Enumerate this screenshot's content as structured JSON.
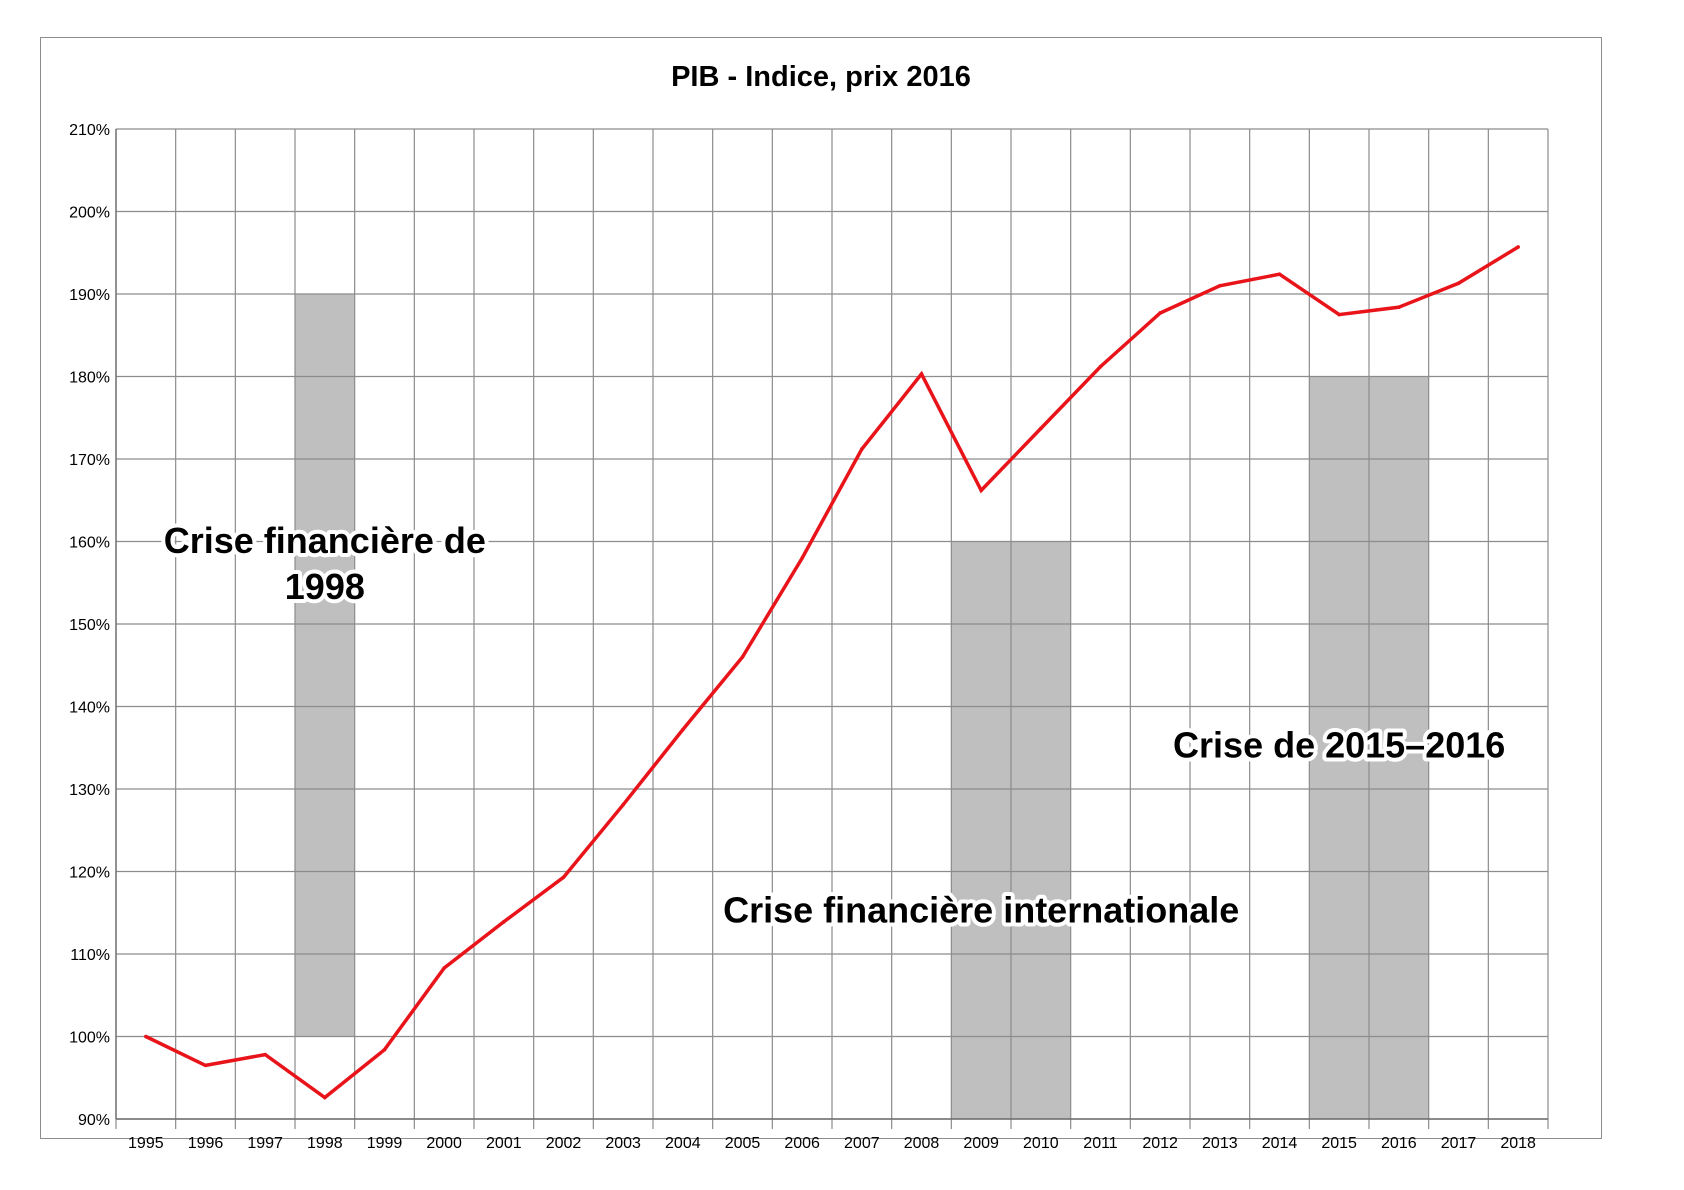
{
  "chart_data": {
    "type": "line",
    "title": "PIB - Indice, prix 2016",
    "xlabel": "",
    "ylabel": "",
    "x": [
      "1995",
      "1996",
      "1997",
      "1998",
      "1999",
      "2000",
      "2001",
      "2002",
      "2003",
      "2004",
      "2005",
      "2006",
      "2007",
      "2008",
      "2009",
      "2010",
      "2011",
      "2012",
      "2013",
      "2014",
      "2015",
      "2016",
      "2017",
      "2018"
    ],
    "series": [
      {
        "values": [
          100.0,
          96.5,
          97.8,
          92.6,
          98.4,
          108.3,
          113.9,
          119.3,
          128.1,
          137.2,
          146.0,
          158.0,
          171.2,
          180.3,
          166.2,
          173.7,
          181.2,
          187.7,
          191.0,
          192.4,
          187.5,
          188.4,
          191.3,
          195.7
        ],
        "color": "#e8141a"
      }
    ],
    "ylim": [
      90,
      210
    ],
    "yticks": [
      90,
      100,
      110,
      120,
      130,
      140,
      150,
      160,
      170,
      180,
      190,
      200,
      210
    ],
    "ytick_labels": [
      "90%",
      "100%",
      "110%",
      "120%",
      "130%",
      "140%",
      "150%",
      "160%",
      "170%",
      "180%",
      "190%",
      "200%",
      "210%"
    ],
    "grid": true,
    "legend": "none",
    "shaded_periods": [
      {
        "from": "1998",
        "to": "1998",
        "y_range": [
          100,
          190
        ],
        "color": "#bfbfbf"
      },
      {
        "from": "2009",
        "to": "2010",
        "y_range": [
          90,
          160
        ],
        "color": "#bfbfbf"
      },
      {
        "from": "2015",
        "to": "2016",
        "y_range": [
          90,
          180
        ],
        "color": "#bfbfbf"
      }
    ],
    "annotations": [
      {
        "lines": [
          "Crise financière de",
          "1998"
        ],
        "at_x": "1998",
        "at_y": 157
      },
      {
        "lines": [
          "Crise financière internationale"
        ],
        "at_x": "2009",
        "at_y": 115
      },
      {
        "lines": [
          "Crise de 2015–2016"
        ],
        "at_x": "2015",
        "at_y": 135
      }
    ]
  },
  "colors": {
    "line": "#e8141a",
    "shade": "#bfbfbf",
    "grid": "#8c8c8c"
  }
}
